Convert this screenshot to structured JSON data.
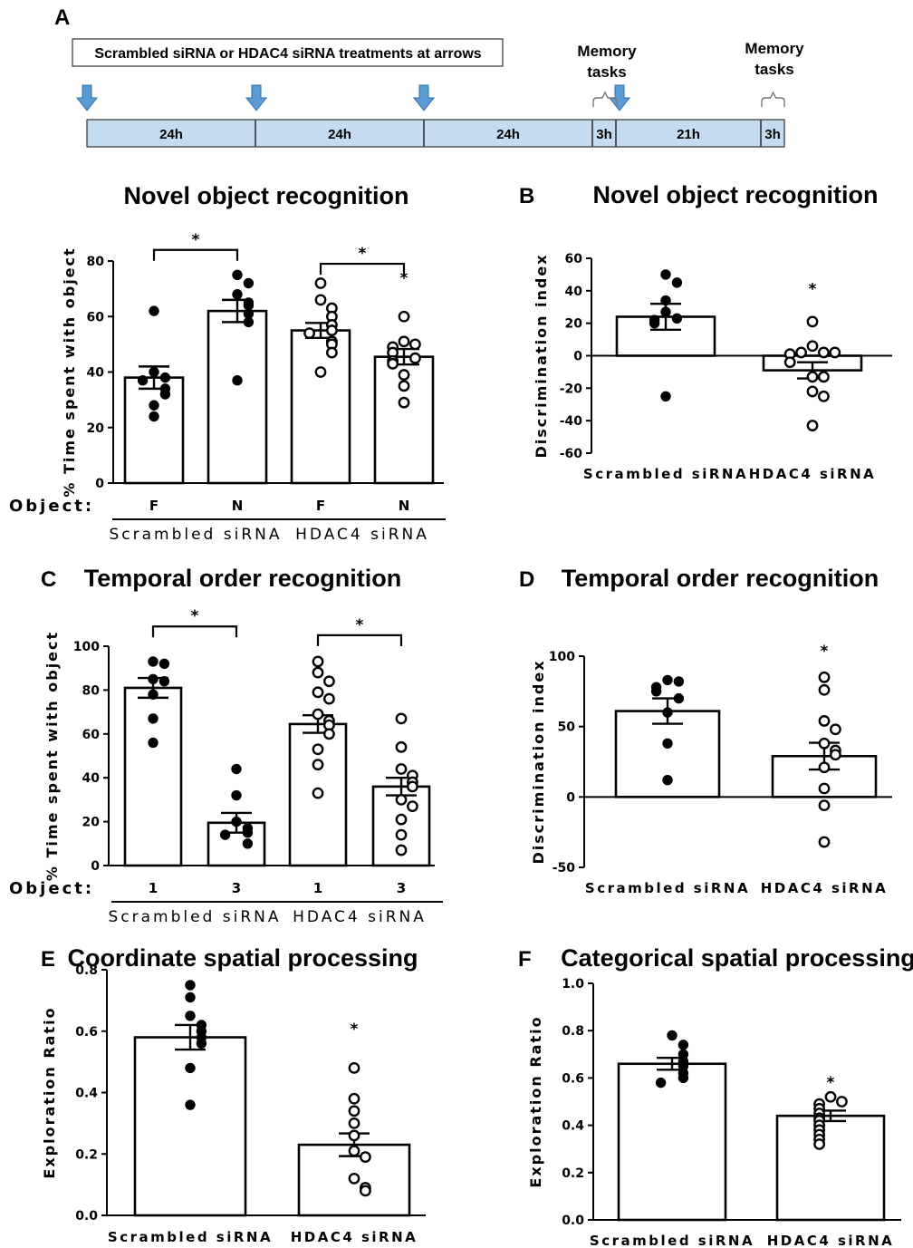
{
  "timeline": {
    "panel_label": "A",
    "header": "Scrambled siRNA or HDAC4 siRNA treatments at arrows",
    "segments": [
      "24h",
      "24h",
      "24h",
      "3h",
      "21h",
      "3h"
    ],
    "memory_label_1": [
      "Memory",
      "tasks"
    ],
    "memory_label_2": [
      "Memory",
      "tasks"
    ],
    "colors": {
      "bar_fill": "#c5dbef",
      "arrow": "#5b9bd5"
    }
  },
  "chart_data": [
    {
      "id": "A",
      "type": "bar",
      "panel_label": "",
      "title": "Novel object recognition",
      "ylabel": "% Time spent with object",
      "xlabel": "Object:",
      "ylim": [
        0,
        80
      ],
      "yticks": [
        0,
        20,
        40,
        60,
        80
      ],
      "categories": [
        "F",
        "N",
        "F",
        "N"
      ],
      "groups": [
        {
          "label": "Scrambled siRNA",
          "bars": [
            0,
            1
          ]
        },
        {
          "label": "HDAC4 siRNA",
          "bars": [
            2,
            3
          ]
        }
      ],
      "values": [
        38,
        62,
        55,
        45.5
      ],
      "sem": [
        4,
        4,
        2.7,
        2.8
      ],
      "points": [
        [
          62,
          40,
          38,
          37,
          34,
          32,
          28,
          24
        ],
        [
          75,
          72,
          68,
          65,
          64,
          61,
          58,
          37
        ],
        [
          72,
          66,
          63,
          60,
          57,
          55,
          54,
          51,
          50,
          47,
          40
        ],
        [
          60,
          51,
          50,
          49,
          47,
          45,
          44,
          43,
          39,
          35,
          29
        ]
      ],
      "filled": [
        true,
        true,
        false,
        false
      ],
      "significance": [
        {
          "from": 0,
          "to": 1,
          "label": "*",
          "y": 84,
          "bracket": true
        },
        {
          "from": 2,
          "to": 3,
          "label": "*",
          "y": 79,
          "bracket": true
        },
        {
          "at": 3,
          "label": "*",
          "y": 72
        }
      ]
    },
    {
      "id": "B",
      "type": "bar",
      "panel_label": "B",
      "title": "Novel object recognition",
      "ylabel": "Discrimination index",
      "ylim": [
        -60,
        60
      ],
      "yticks": [
        -60,
        -40,
        -20,
        0,
        20,
        40,
        60
      ],
      "categories": [
        "Scrambled siRNA",
        "HDAC4 siRNA"
      ],
      "values": [
        24,
        -9
      ],
      "sem": [
        8,
        5
      ],
      "points": [
        [
          50,
          45,
          34,
          27,
          23,
          22,
          20,
          -25
        ],
        [
          21,
          6,
          2,
          2,
          2,
          1,
          -4,
          -13,
          -13,
          -22,
          -25,
          -43
        ]
      ],
      "filled": [
        true,
        false
      ],
      "significance": [
        {
          "at": 1,
          "label": "*",
          "y": 38
        }
      ]
    },
    {
      "id": "C",
      "type": "bar",
      "panel_label": "C",
      "title": "Temporal order recognition",
      "ylabel": "% Time spent with object",
      "xlabel": "Object:",
      "ylim": [
        0,
        100
      ],
      "yticks": [
        0,
        20,
        40,
        60,
        80,
        100
      ],
      "categories": [
        "1",
        "3",
        "1",
        "3"
      ],
      "groups": [
        {
          "label": "Scrambled siRNA",
          "bars": [
            0,
            1
          ]
        },
        {
          "label": "HDAC4 siRNA",
          "bars": [
            2,
            3
          ]
        }
      ],
      "values": [
        81,
        19.5,
        64.5,
        36
      ],
      "sem": [
        4.5,
        4.5,
        4,
        4
      ],
      "points": [
        [
          93,
          92,
          85,
          84,
          78,
          67,
          56
        ],
        [
          44,
          32,
          20,
          17,
          15,
          14,
          10
        ],
        [
          93,
          88,
          84,
          79,
          76,
          69,
          66,
          64,
          60,
          53,
          46,
          33
        ],
        [
          67,
          54,
          44,
          41,
          38,
          36,
          30,
          27,
          21,
          14,
          7
        ]
      ],
      "filled": [
        true,
        true,
        false,
        false
      ],
      "significance": [
        {
          "from": 0,
          "to": 1,
          "label": "*",
          "y": 109,
          "bracket": true
        },
        {
          "from": 2,
          "to": 3,
          "label": "*",
          "y": 105,
          "bracket": true
        }
      ]
    },
    {
      "id": "D",
      "type": "bar",
      "panel_label": "D",
      "title": "Temporal order recognition",
      "ylabel": "Discrimination index",
      "ylim": [
        -50,
        100
      ],
      "yticks": [
        -50,
        0,
        50,
        100
      ],
      "categories": [
        "Scrambled siRNA",
        "HDAC4 siRNA"
      ],
      "values": [
        61,
        29
      ],
      "sem": [
        9,
        9.5
      ],
      "points": [
        [
          83,
          82,
          78,
          75,
          70,
          60,
          38,
          12
        ],
        [
          85,
          76,
          54,
          48,
          38,
          33,
          30,
          21,
          6,
          -6,
          -32
        ]
      ],
      "filled": [
        true,
        false
      ],
      "significance": [
        {
          "at": 1,
          "label": "*",
          "y": 100
        }
      ]
    },
    {
      "id": "E",
      "type": "bar",
      "panel_label": "E",
      "title": "Coordinate spatial processing",
      "ylabel": "Exploration Ratio",
      "ylim": [
        0,
        0.8
      ],
      "yticks": [
        0.0,
        0.2,
        0.4,
        0.6,
        0.8
      ],
      "categories": [
        "Scrambled siRNA",
        "HDAC4 siRNA"
      ],
      "values": [
        0.58,
        0.23
      ],
      "sem": [
        0.04,
        0.037
      ],
      "points": [
        [
          0.75,
          0.71,
          0.65,
          0.62,
          0.6,
          0.58,
          0.56,
          0.48,
          0.36
        ],
        [
          0.48,
          0.38,
          0.34,
          0.3,
          0.26,
          0.21,
          0.19,
          0.12,
          0.09,
          0.08
        ]
      ],
      "filled": [
        true,
        false
      ],
      "significance": [
        {
          "at": 1,
          "label": "*",
          "y": 0.59
        }
      ]
    },
    {
      "id": "F",
      "type": "bar",
      "panel_label": "F",
      "title": "Categorical spatial processing",
      "ylabel": "Exploration Ratio",
      "ylim": [
        0,
        1.0
      ],
      "yticks": [
        0.0,
        0.2,
        0.4,
        0.6,
        0.8,
        1.0
      ],
      "categories": [
        "Scrambled siRNA",
        "HDAC4 siRNA"
      ],
      "values": [
        0.66,
        0.44
      ],
      "sem": [
        0.025,
        0.022
      ],
      "points": [
        [
          0.78,
          0.74,
          0.7,
          0.67,
          0.65,
          0.62,
          0.6,
          0.58
        ],
        [
          0.52,
          0.5,
          0.49,
          0.47,
          0.45,
          0.43,
          0.42,
          0.4,
          0.38,
          0.36,
          0.34,
          0.32
        ]
      ],
      "filled": [
        true,
        false
      ],
      "significance": [
        {
          "at": 1,
          "label": "*",
          "y": 0.56
        }
      ]
    }
  ]
}
